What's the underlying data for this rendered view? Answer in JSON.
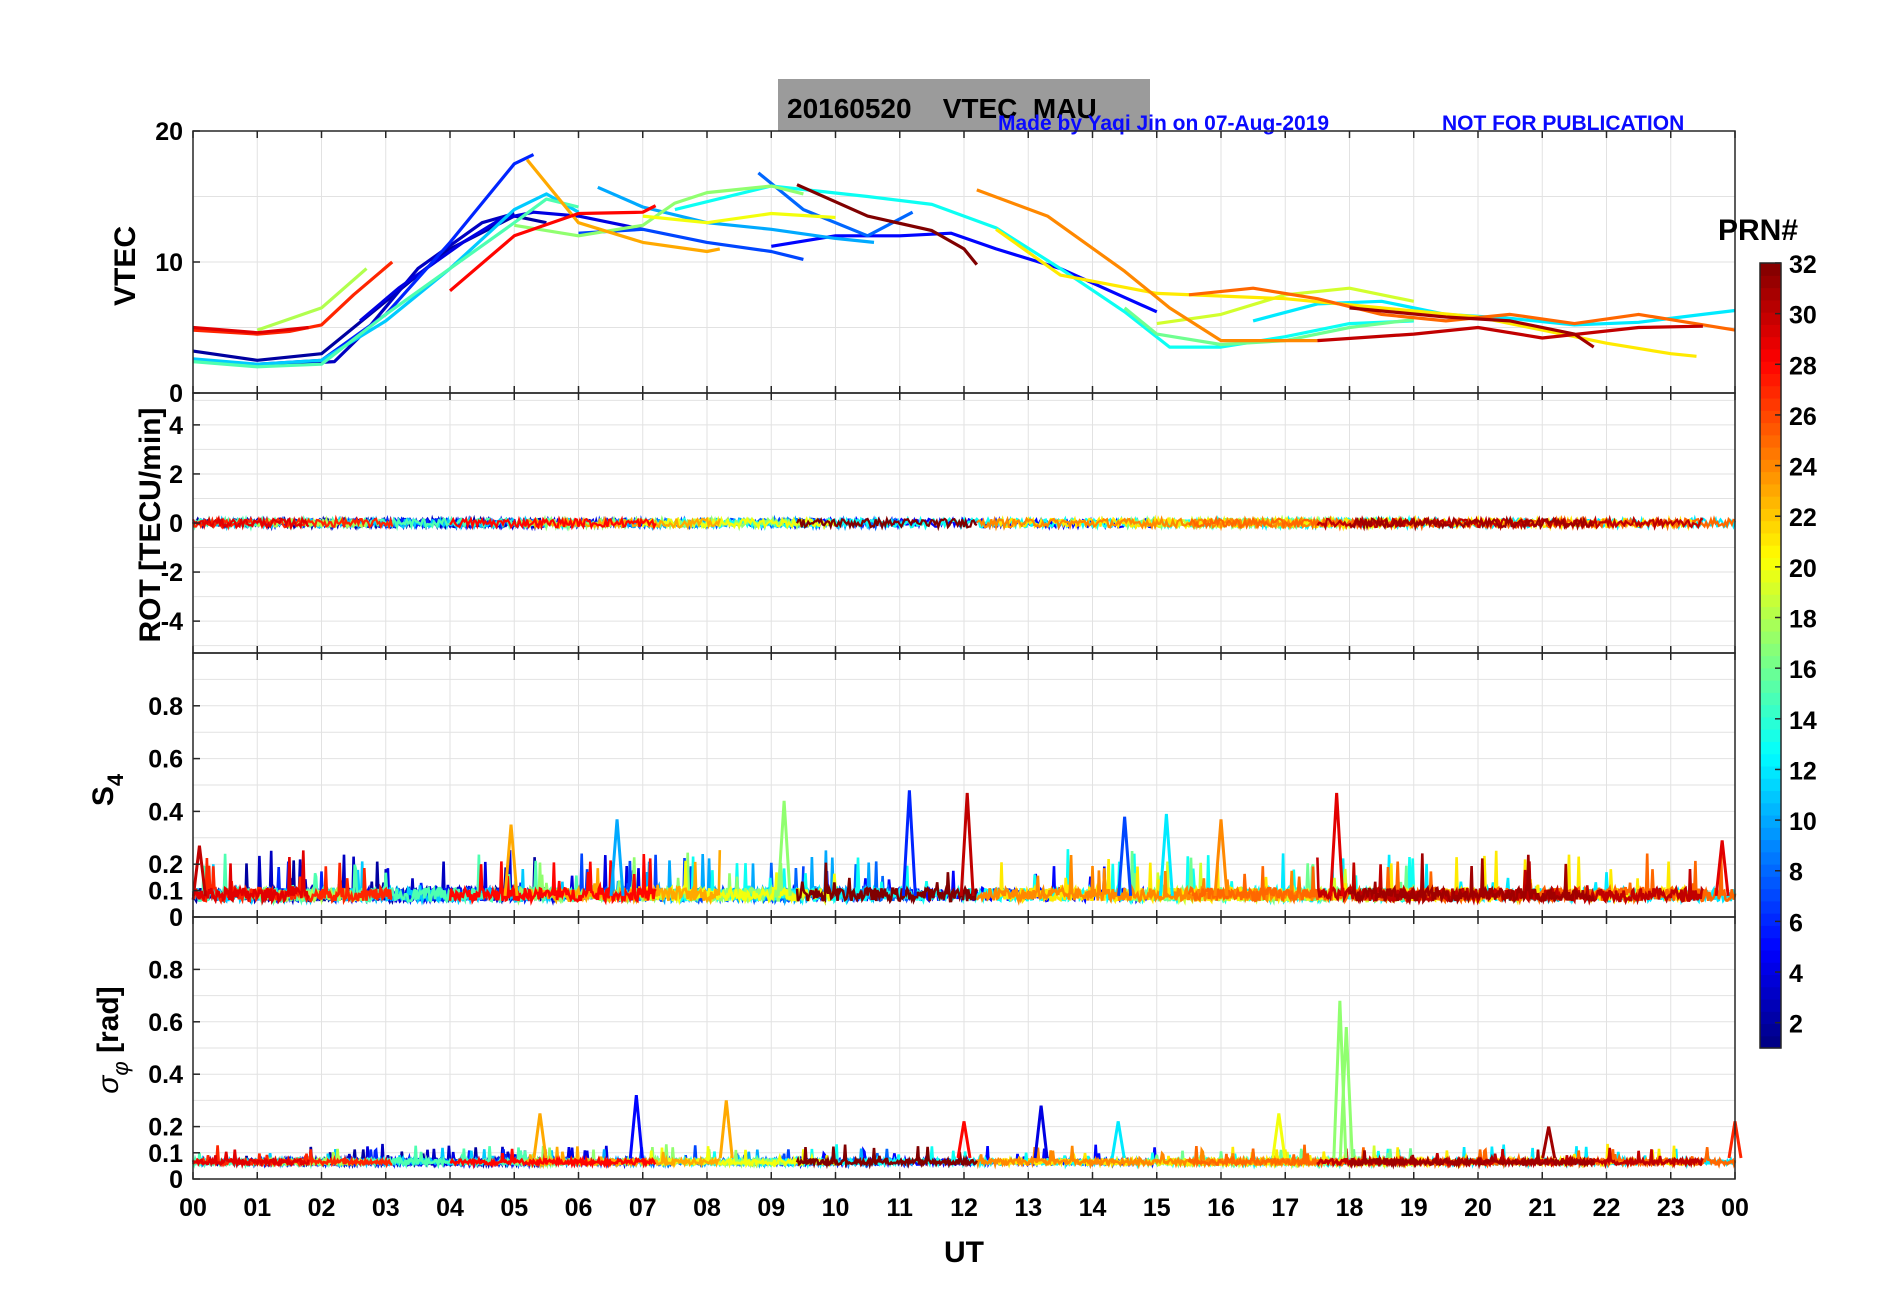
{
  "title": "20160520    VTEC  MAU",
  "credit_left": "Made by Yaqi Jin on 07-Aug-2019",
  "credit_right": "NOT FOR PUBLICATION",
  "colors": {
    "title_box": "#9b9b9b",
    "credit": "#0a0aff",
    "grid": "#e2e2e2"
  },
  "chart_data": [
    {
      "type": "line",
      "panel": "vtec",
      "ylabel": "VTEC",
      "ylim": [
        0,
        20
      ],
      "yticks": [
        "0",
        "10",
        "20"
      ],
      "xlim": [
        0,
        24
      ],
      "grid": true,
      "series": [
        {
          "prn": 2,
          "x": [
            0,
            1,
            2,
            3,
            4,
            5,
            5.5
          ],
          "y": [
            3.2,
            2.5,
            3.0,
            7.0,
            11,
            13.5,
            13
          ]
        },
        {
          "prn": 3,
          "x": [
            0.8,
            1.5,
            2.2,
            2.7,
            3.5,
            4.5,
            5.0
          ],
          "y": [
            2.2,
            2.2,
            2.4,
            4.8,
            9.5,
            13,
            13.7
          ]
        },
        {
          "prn": 4,
          "x": [
            2.6,
            3.2,
            4.2,
            4.8,
            5.3,
            6.0,
            7.0
          ],
          "y": [
            5.5,
            8.0,
            11.5,
            13.3,
            13.8,
            13.5,
            12.5
          ]
        },
        {
          "prn": 5,
          "x": [
            9,
            10,
            11,
            11.8,
            12.5,
            13.5,
            14.5,
            15.0
          ],
          "y": [
            11.2,
            12,
            12,
            12.2,
            11,
            9.5,
            7.3,
            6.2
          ]
        },
        {
          "prn": 6,
          "x": [
            1,
            2,
            3,
            4,
            5,
            5.3
          ],
          "y": [
            2.2,
            2.5,
            6.0,
            11.5,
            17.5,
            18.2
          ]
        },
        {
          "prn": 7,
          "x": [
            6,
            7,
            8,
            9,
            9.5
          ],
          "y": [
            12.2,
            12.5,
            11.5,
            10.8,
            10.2
          ]
        },
        {
          "prn": 8,
          "x": [
            8.8,
            9.5,
            10.5,
            11.2
          ],
          "y": [
            16.8,
            14,
            12,
            13.8
          ]
        },
        {
          "prn": 10,
          "x": [
            6.3,
            7,
            8,
            9,
            10,
            10.6
          ],
          "y": [
            15.7,
            14.2,
            13.0,
            12.5,
            11.8,
            11.5
          ]
        },
        {
          "prn": 11,
          "x": [
            0,
            1,
            2,
            3,
            4,
            5,
            5.5,
            6.0
          ],
          "y": [
            2.6,
            2.2,
            2.5,
            5.5,
            9.5,
            14,
            15.2,
            13.8
          ]
        },
        {
          "prn": 12,
          "x": [
            16.5,
            17.5,
            18.5,
            19.5,
            20.5,
            21.5,
            22.5,
            23.5,
            24
          ],
          "y": [
            5.5,
            6.8,
            7.0,
            6.0,
            5.7,
            5.2,
            5.4,
            6.0,
            6.3
          ]
        },
        {
          "prn": 13,
          "x": [
            7.5,
            9,
            10.5,
            11.5,
            12.5,
            13.5,
            14.5,
            15.2,
            16,
            17,
            18,
            19
          ],
          "y": [
            14,
            15.8,
            15,
            14.4,
            12.6,
            9.5,
            6.2,
            3.5,
            3.5,
            4.3,
            5.3,
            5.5
          ]
        },
        {
          "prn": 15,
          "x": [
            0,
            1,
            2,
            3,
            4,
            5,
            5.5,
            6.0
          ],
          "y": [
            2.4,
            2.0,
            2.2,
            6.0,
            9.5,
            13,
            14.8,
            14.2
          ]
        },
        {
          "prn": 16,
          "x": [
            14.5,
            15.0,
            16,
            17,
            18,
            19
          ],
          "y": [
            6.5,
            4.5,
            3.7,
            4.0,
            5.0,
            5.6
          ]
        },
        {
          "prn": 17,
          "x": [
            5,
            6,
            7,
            7.5,
            8,
            9,
            9.5
          ],
          "y": [
            12.8,
            12.0,
            12.8,
            14.5,
            15.3,
            15.8,
            15.2
          ]
        },
        {
          "prn": 18,
          "x": [
            1,
            2,
            2.7
          ],
          "y": [
            4.8,
            6.5,
            9.5
          ]
        },
        {
          "prn": 19,
          "x": [
            15,
            16,
            17,
            18,
            19
          ],
          "y": [
            5.3,
            6.0,
            7.5,
            8.0,
            7.0
          ]
        },
        {
          "prn": 20,
          "x": [
            7,
            8,
            9,
            10
          ],
          "y": [
            13.5,
            13.0,
            13.7,
            13.4
          ]
        },
        {
          "prn": 21,
          "x": [
            12.5,
            13.5,
            15,
            17,
            18.5,
            20,
            21,
            22,
            23,
            23.4
          ],
          "y": [
            12.5,
            9.0,
            7.6,
            7.2,
            6.5,
            5.8,
            4.8,
            3.8,
            3.0,
            2.8
          ]
        },
        {
          "prn": 23,
          "x": [
            5.2,
            6.0,
            7.0,
            8.0,
            8.2
          ],
          "y": [
            17.8,
            13,
            11.5,
            10.8,
            11
          ]
        },
        {
          "prn": 24,
          "x": [
            12.2,
            13.3,
            14.5,
            15.2,
            16,
            17,
            17.5
          ],
          "y": [
            15.5,
            13.5,
            9.3,
            6.5,
            4.0,
            4.0,
            4.0
          ]
        },
        {
          "prn": 25,
          "x": [
            15.5,
            16.5,
            17.5,
            18.5,
            19.5,
            20.5,
            21.5,
            22.5,
            24
          ],
          "y": [
            7.5,
            8.0,
            7.2,
            6.0,
            5.5,
            6.0,
            5.3,
            6.0,
            4.8
          ]
        },
        {
          "prn": 27,
          "x": [
            0,
            1,
            1.5,
            2,
            2.5,
            3.1
          ],
          "y": [
            4.8,
            4.5,
            4.7,
            5.2,
            7.5,
            10.0
          ]
        },
        {
          "prn": 28,
          "x": [
            4,
            5,
            6,
            7,
            7.2
          ],
          "y": [
            7.8,
            12.0,
            13.7,
            13.8,
            14.3
          ]
        },
        {
          "prn": 29,
          "x": [
            0,
            1,
            1.8
          ],
          "y": [
            5.0,
            4.6,
            5.0
          ]
        },
        {
          "prn": 30,
          "x": [
            17.5,
            19,
            20,
            21,
            22.5,
            23.5
          ],
          "y": [
            4.0,
            4.5,
            5.0,
            4.2,
            5.0,
            5.1
          ]
        },
        {
          "prn": 31,
          "x": [
            18,
            19.5,
            20.5,
            21.5,
            21.8
          ],
          "y": [
            6.5,
            5.8,
            5.5,
            4.5,
            3.5
          ]
        },
        {
          "prn": 32,
          "x": [
            9.4,
            10.5,
            11.5,
            12,
            12.2
          ],
          "y": [
            15.9,
            13.5,
            12.4,
            11,
            9.8
          ]
        }
      ]
    },
    {
      "type": "line",
      "panel": "rot",
      "ylabel": "ROT [TECU/min]",
      "ylim": [
        -5.3,
        5.3
      ],
      "yticks": [
        "-4",
        "-2",
        "0",
        "2",
        "4"
      ],
      "xlim": [
        0,
        24
      ],
      "grid": true,
      "description_values": "fluctuations within about -0.6 to 0.6 around 0"
    },
    {
      "type": "line",
      "panel": "s4",
      "ylabel": "S4",
      "ylim": [
        0,
        1
      ],
      "yticks": [
        "0",
        "0.1",
        "0.2",
        "0.4",
        "0.6",
        "0.8"
      ],
      "xlim": [
        0,
        24
      ],
      "grid": true,
      "spikes": [
        {
          "x": 0.1,
          "y": 0.27,
          "prn": 30
        },
        {
          "x": 4.95,
          "y": 0.35,
          "prn": 23
        },
        {
          "x": 6.6,
          "y": 0.37,
          "prn": 10
        },
        {
          "x": 9.2,
          "y": 0.44,
          "prn": 17
        },
        {
          "x": 11.15,
          "y": 0.48,
          "prn": 6
        },
        {
          "x": 12.05,
          "y": 0.47,
          "prn": 30
        },
        {
          "x": 14.5,
          "y": 0.38,
          "prn": 7
        },
        {
          "x": 15.15,
          "y": 0.39,
          "prn": 12
        },
        {
          "x": 16.0,
          "y": 0.37,
          "prn": 24
        },
        {
          "x": 17.8,
          "y": 0.47,
          "prn": 29
        },
        {
          "x": 23.8,
          "y": 0.29,
          "prn": 29
        }
      ]
    },
    {
      "type": "line",
      "panel": "sigma_phi",
      "ylabel": "σ_φ [rad]",
      "ylim": [
        0,
        1
      ],
      "yticks": [
        "0",
        "0.1",
        "0.2",
        "0.4",
        "0.6",
        "0.8"
      ],
      "xlim": [
        0,
        24
      ],
      "xlabel": "UT",
      "xticks": [
        "00",
        "01",
        "02",
        "03",
        "04",
        "05",
        "06",
        "07",
        "08",
        "09",
        "10",
        "11",
        "12",
        "13",
        "14",
        "15",
        "16",
        "17",
        "18",
        "19",
        "20",
        "21",
        "22",
        "23",
        "00"
      ],
      "grid": true,
      "spikes": [
        {
          "x": 5.4,
          "y": 0.25,
          "prn": 23
        },
        {
          "x": 6.9,
          "y": 0.32,
          "prn": 5
        },
        {
          "x": 8.3,
          "y": 0.3,
          "prn": 23
        },
        {
          "x": 12.0,
          "y": 0.22,
          "prn": 28
        },
        {
          "x": 13.2,
          "y": 0.28,
          "prn": 4
        },
        {
          "x": 14.4,
          "y": 0.22,
          "prn": 12
        },
        {
          "x": 16.9,
          "y": 0.25,
          "prn": 20
        },
        {
          "x": 17.85,
          "y": 0.68,
          "prn": 17
        },
        {
          "x": 17.95,
          "y": 0.58,
          "prn": 17
        },
        {
          "x": 21.1,
          "y": 0.2,
          "prn": 31
        },
        {
          "x": 24.0,
          "y": 0.22,
          "prn": 27
        }
      ]
    }
  ],
  "colorbar": {
    "label": "PRN#",
    "min": 1,
    "max": 32,
    "ticks": [
      "2",
      "4",
      "6",
      "8",
      "10",
      "12",
      "14",
      "16",
      "18",
      "20",
      "22",
      "24",
      "26",
      "28",
      "30",
      "32"
    ]
  }
}
